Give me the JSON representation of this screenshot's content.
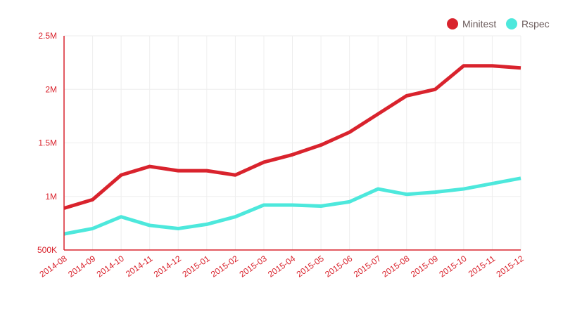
{
  "chart_data": {
    "type": "line",
    "title": "",
    "xlabel": "",
    "ylabel": "",
    "categories": [
      "2014-08",
      "2014-09",
      "2014-10",
      "2014-11",
      "2014-12",
      "2015-01",
      "2015-02",
      "2015-03",
      "2015-04",
      "2015-05",
      "2015-06",
      "2015-07",
      "2015-08",
      "2015-09",
      "2015-10",
      "2015-11",
      "2015-12"
    ],
    "ylim": [
      500000,
      2500000
    ],
    "yticks": [
      500000,
      1000000,
      1500000,
      2000000,
      2500000
    ],
    "ytick_labels": [
      "500K",
      "1M",
      "1.5M",
      "2M",
      "2.5M"
    ],
    "grid": true,
    "legend_position": "top-right",
    "series": [
      {
        "name": "Minitest",
        "color": "#d9232d",
        "values": [
          890000,
          970000,
          1200000,
          1280000,
          1240000,
          1240000,
          1200000,
          1320000,
          1390000,
          1480000,
          1600000,
          1770000,
          1940000,
          2000000,
          2220000,
          2220000,
          2200000
        ]
      },
      {
        "name": "Rspec",
        "color": "#4de8dc",
        "values": [
          650000,
          700000,
          810000,
          730000,
          700000,
          740000,
          810000,
          920000,
          920000,
          910000,
          950000,
          1070000,
          1020000,
          1040000,
          1070000,
          1120000,
          1170000
        ]
      }
    ],
    "axis_color": "#d9232d",
    "grid_color": "#eeeeee"
  }
}
